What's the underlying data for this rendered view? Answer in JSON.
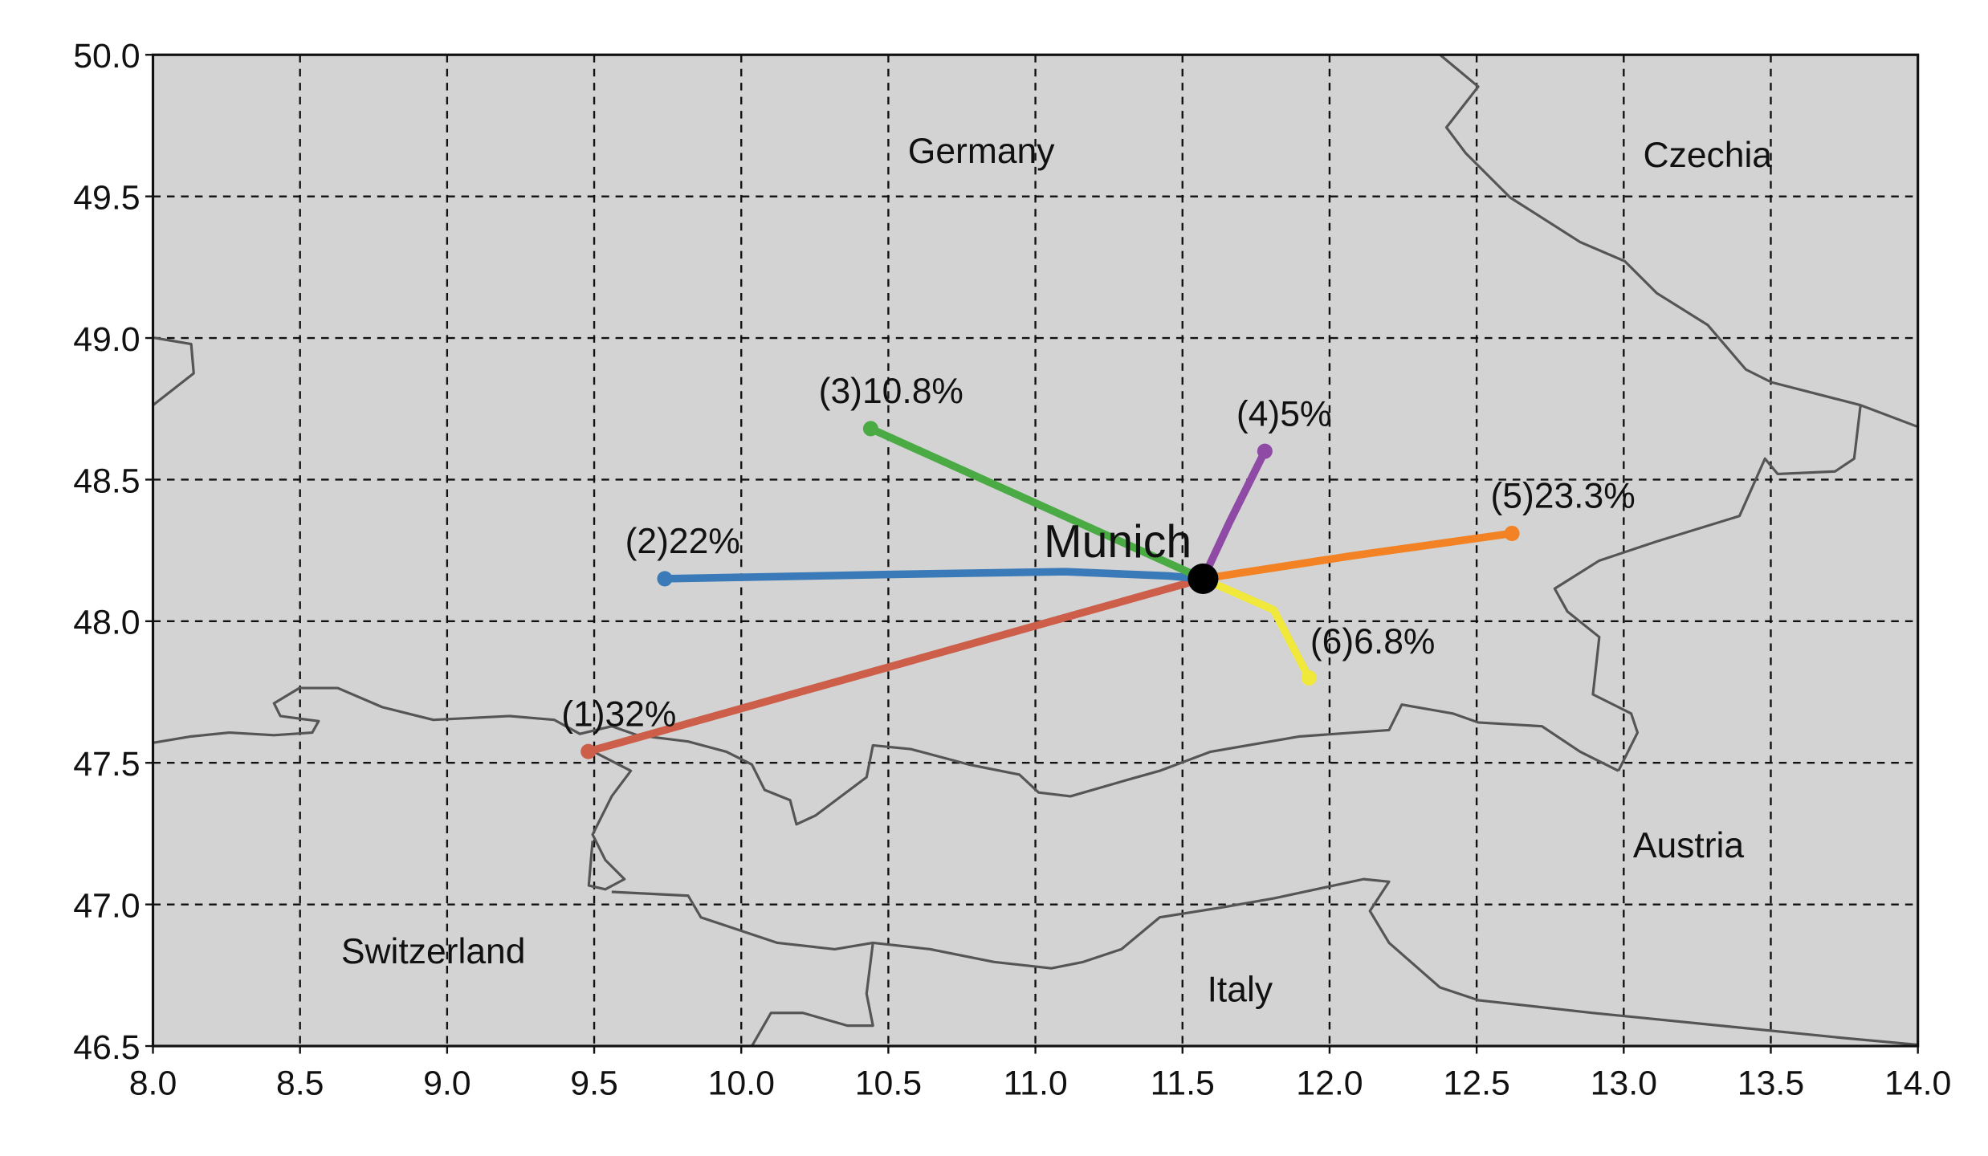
{
  "chart_data": {
    "type": "route-map",
    "xlim": [
      8,
      14
    ],
    "ylim": [
      46.5,
      50
    ],
    "xticks": [
      {
        "value": 8,
        "label": "8.0"
      },
      8.5,
      {
        "value": 9,
        "label": "9.0"
      },
      9.5,
      {
        "value": 10,
        "label": "10.0"
      },
      10.5,
      {
        "value": 11,
        "label": "11.0"
      },
      11.5,
      {
        "value": 12,
        "label": "12.0"
      },
      12.5,
      {
        "value": 13,
        "label": "13.0"
      },
      13.5,
      {
        "value": 14,
        "label": "14.0"
      }
    ],
    "yticks": [
      {
        "value": 46.5,
        "label": "46.5"
      },
      {
        "value": 47,
        "label": "47.0"
      },
      47.5,
      {
        "value": 48,
        "label": "48.0"
      },
      48.5,
      {
        "value": 49,
        "label": "49.0"
      },
      49.5,
      {
        "value": 50,
        "label": "50.0"
      }
    ],
    "grid": true,
    "background": "#d3d3d3",
    "city": {
      "name": "Munich",
      "x": 11.57,
      "y": 48.15,
      "color": "#000000"
    },
    "regions": [
      "Germany",
      "Czechia",
      "Austria",
      "Switzerland",
      "Italy"
    ],
    "series": [
      {
        "name": "(1)32%",
        "color": "#cc5e4a",
        "x": [
          9.48,
          11.57
        ],
        "y": [
          47.54,
          48.15
        ]
      },
      {
        "name": "(2)22%",
        "color": "#3a7ab8",
        "x": [
          9.74,
          10.5,
          11.1,
          11.45,
          11.57
        ],
        "y": [
          48.15,
          48.165,
          48.175,
          48.16,
          48.15
        ]
      },
      {
        "name": "(3)10.8%",
        "color": "#4aaa44",
        "x": [
          10.44,
          11.57
        ],
        "y": [
          48.68,
          48.15
        ]
      },
      {
        "name": "(4)5%",
        "color": "#8e4aa4",
        "x": [
          11.78,
          11.66,
          11.57
        ],
        "y": [
          48.6,
          48.35,
          48.15
        ]
      },
      {
        "name": "(5)23.3%",
        "color": "#f28223",
        "x": [
          12.62,
          12.07,
          11.57
        ],
        "y": [
          48.31,
          48.23,
          48.15
        ]
      },
      {
        "name": "(6)6.8%",
        "color": "#f0e83a",
        "x": [
          11.93,
          11.81,
          11.57
        ],
        "y": [
          47.8,
          48.04,
          48.15
        ]
      }
    ]
  }
}
